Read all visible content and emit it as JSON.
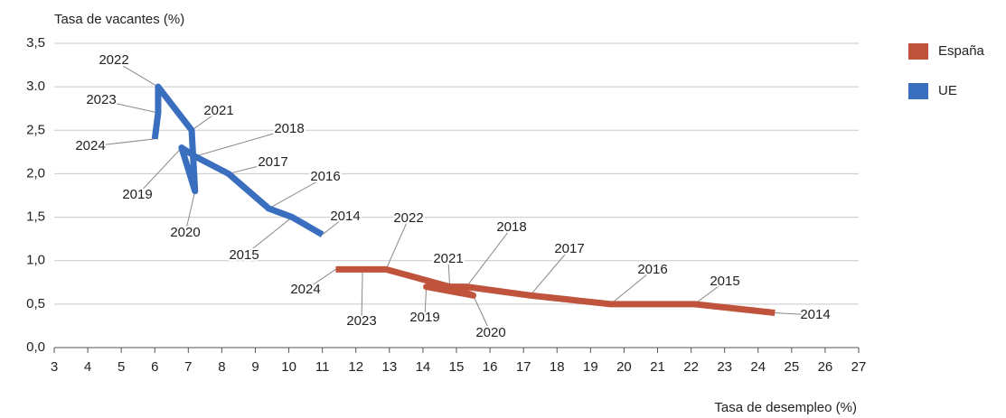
{
  "chart_data": {
    "type": "line",
    "y_label": "Tasa de vacantes (%)",
    "x_label": "Tasa de desempleo (%)",
    "xlim": [
      3,
      27
    ],
    "xticks": [
      3,
      4,
      5,
      6,
      7,
      8,
      9,
      10,
      11,
      12,
      13,
      14,
      15,
      16,
      17,
      18,
      19,
      20,
      21,
      22,
      23,
      24,
      25,
      26,
      27
    ],
    "ylim": [
      0,
      3.5
    ],
    "yticks": [
      {
        "value": 0,
        "label": "0,0"
      },
      {
        "value": 0.5,
        "label": "0,5"
      },
      {
        "value": 1,
        "label": "1,0"
      },
      {
        "value": 1.5,
        "label": "1,5"
      },
      {
        "value": 2,
        "label": "2,0"
      },
      {
        "value": 2.5,
        "label": "2,5"
      },
      {
        "value": 3,
        "label": "3.0"
      },
      {
        "value": 3.5,
        "label": "3,5"
      }
    ],
    "grid": true,
    "series": [
      {
        "name": "España",
        "color": "#c0533c",
        "labels": [
          "2014",
          "2015",
          "2016",
          "2017",
          "2018",
          "2019",
          "2020",
          "2021",
          "2022",
          "2023",
          "2024"
        ],
        "x": [
          24.5,
          22.1,
          19.6,
          17.2,
          15.3,
          14.1,
          15.5,
          14.8,
          12.9,
          12.2,
          11.4
        ],
        "values": [
          0.4,
          0.5,
          0.5,
          0.6,
          0.7,
          0.7,
          0.6,
          0.7,
          0.9,
          0.9,
          0.9
        ]
      },
      {
        "name": "UE",
        "color": "#3a6fc0",
        "labels": [
          "2014",
          "2015",
          "2016",
          "2017",
          "2018",
          "2019",
          "2020",
          "2021",
          "2022",
          "2023",
          "2024"
        ],
        "x": [
          11.0,
          10.1,
          9.4,
          8.2,
          7.2,
          6.8,
          7.2,
          7.1,
          6.1,
          6.1,
          6.0
        ],
        "values": [
          1.3,
          1.5,
          1.6,
          2.0,
          2.2,
          2.3,
          1.8,
          2.5,
          3.0,
          2.7,
          2.4
        ]
      }
    ]
  }
}
